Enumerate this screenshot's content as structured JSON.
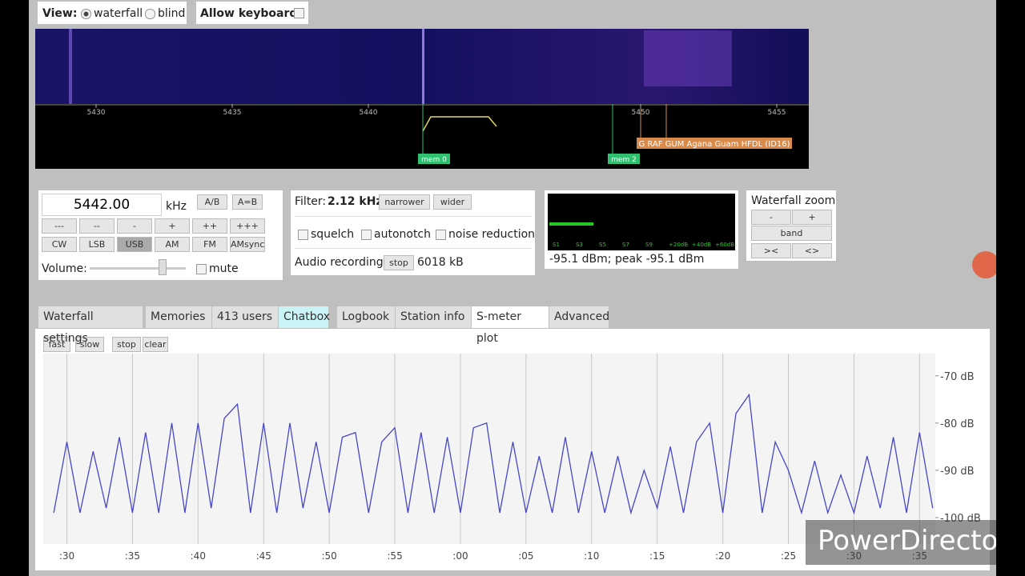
{
  "view_bar": {
    "label": "View:",
    "options": [
      "waterfall",
      "blind"
    ],
    "keyboard_label": "Allow keyboard:"
  },
  "waterfall": {
    "freq_ticks": [
      5430,
      5435,
      5440,
      5450,
      5455
    ],
    "markers": [
      "mem 0",
      "mem 2"
    ],
    "station_label": "G RAF GUM Agana Guam HFDL (ID16)"
  },
  "tuning": {
    "frequency": "5442.00",
    "unit": "kHz",
    "ab_buttons": [
      "A/B",
      "A=B"
    ],
    "step_buttons": [
      "---",
      "--",
      "-",
      "+",
      "++",
      "+++"
    ],
    "mode_buttons": [
      "CW",
      "LSB",
      "USB",
      "AM",
      "FM",
      "AMsync"
    ],
    "volume_label": "Volume:",
    "mute_label": "mute"
  },
  "filter": {
    "label": "Filter:",
    "width": "2.12 kHz",
    "buttons": [
      "narrower",
      "wider"
    ],
    "checkboxes": [
      "squelch",
      "autonotch",
      "noise reduction"
    ],
    "recording_label": "Audio recording",
    "recording_button": "stop",
    "recording_size": "6018 kB"
  },
  "smeter": {
    "scale": [
      "S1",
      "S3",
      "S5",
      "S7",
      "S9",
      "+20dB",
      "+40dB",
      "+60dB"
    ],
    "reading": "-95.1 dBm; peak -95.1 dBm"
  },
  "zoom": {
    "title": "Waterfall zoom",
    "buttons": [
      "-",
      "+",
      "band",
      "><",
      "<>"
    ]
  },
  "tabs": [
    "Waterfall settings",
    "Memories",
    "413 users",
    "Chatbox",
    "Logbook",
    "Station info",
    "S-meter plot",
    "Advanced"
  ],
  "smeter_plot": {
    "type": "line",
    "buttons": [
      "fast",
      "slow",
      "stop",
      "clear"
    ],
    "color": "#4646c8",
    "xlim": [
      28.2,
      96.2
    ],
    "ylim": [
      -105.6,
      -65.3
    ],
    "xticks": [
      {
        "value": 30,
        "label": ":30"
      },
      {
        "value": 35,
        "label": ":35"
      },
      {
        "value": 40,
        "label": ":40"
      },
      {
        "value": 45,
        "label": ":45"
      },
      {
        "value": 50,
        "label": ":50"
      },
      {
        "value": 55,
        "label": ":55"
      },
      {
        "value": 60,
        "label": ":00"
      },
      {
        "value": 65,
        "label": ":05"
      },
      {
        "value": 70,
        "label": ":10"
      },
      {
        "value": 75,
        "label": ":15"
      },
      {
        "value": 80,
        "label": ":20"
      },
      {
        "value": 85,
        "label": ":25"
      },
      {
        "value": 90,
        "label": ":30"
      },
      {
        "value": 95,
        "label": ":35"
      }
    ],
    "yticks": [
      {
        "value": -70,
        "label": "-70 dB"
      },
      {
        "value": -80,
        "label": "-80 dB"
      },
      {
        "value": -90,
        "label": "-90 dB"
      },
      {
        "value": -100,
        "label": "-100 dB"
      }
    ],
    "x": [
      29,
      30,
      31,
      32,
      33,
      34,
      35,
      36,
      37,
      38,
      39,
      40,
      41,
      42,
      43,
      44,
      45,
      46,
      47,
      48,
      49,
      50,
      51,
      52,
      53,
      54,
      55,
      56,
      57,
      58,
      59,
      60,
      61,
      62,
      63,
      64,
      65,
      66,
      67,
      68,
      69,
      70,
      71,
      72,
      73,
      74,
      75,
      76,
      77,
      78,
      79,
      80,
      81,
      82,
      83,
      84,
      85,
      86,
      87,
      88,
      89,
      90,
      91,
      92,
      93,
      94,
      95,
      96
    ],
    "values": [
      -99,
      -84,
      -99,
      -86,
      -98,
      -83,
      -99,
      -82,
      -99,
      -80,
      -99,
      -80,
      -98,
      -79,
      -76,
      -99,
      -80,
      -99,
      -80,
      -98,
      -84,
      -99,
      -83,
      -82,
      -99,
      -84,
      -81,
      -99,
      -82,
      -99,
      -83,
      -99,
      -81,
      -80,
      -99,
      -84,
      -99,
      -87,
      -99,
      -83,
      -99,
      -86,
      -99,
      -87,
      -99,
      -90,
      -98,
      -85,
      -99,
      -84,
      -80,
      -99,
      -78,
      -74,
      -99,
      -84,
      -90,
      -99,
      -88,
      -99,
      -91,
      -99,
      -87,
      -98,
      -83,
      -99,
      -82,
      -98
    ]
  },
  "watermark": "PowerDirector"
}
